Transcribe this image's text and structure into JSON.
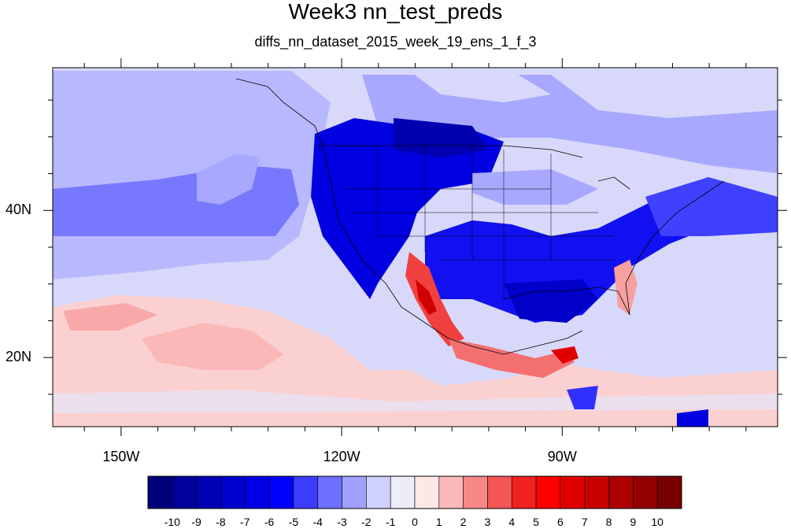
{
  "title": "Week3 nn_test_preds",
  "subtitle": "diffs_nn_dataset_2015_week_19_ens_1_f_3",
  "axes": {
    "lat_labels": [
      {
        "text": "40N",
        "value": 40
      },
      {
        "text": "20N",
        "value": 20
      }
    ],
    "lon_labels": [
      {
        "text": "150W",
        "value": -150
      },
      {
        "text": "120W",
        "value": -120
      },
      {
        "text": "90W",
        "value": -90
      }
    ],
    "lon_range": [
      -159.3,
      -60.7
    ],
    "lat_range": [
      10.6,
      59.4
    ]
  },
  "colorbar": {
    "levels": [
      "-10",
      "-9",
      "-8",
      "-7",
      "-6",
      "-5",
      "-4",
      "-3",
      "-2",
      "-1",
      "0",
      "1",
      "2",
      "3",
      "4",
      "5",
      "6",
      "7",
      "8",
      "9",
      "10"
    ],
    "colors": [
      "#00007a",
      "#00009a",
      "#0000b5",
      "#0000cf",
      "#0000e6",
      "#0000ff",
      "#3c3cff",
      "#6e6eff",
      "#a0a0ff",
      "#d0d0ff",
      "#ececfa",
      "#fde8e8",
      "#fbb8b8",
      "#f88888",
      "#f45555",
      "#f02222",
      "#ff0000",
      "#e00000",
      "#c80000",
      "#ad0000",
      "#930000",
      "#780000"
    ]
  },
  "field_colors": {
    "ocean_light": "#d4d4fa",
    "blue_medium": "#a8a8ff",
    "blue_dark": "#0000e0",
    "red_light": "#fbc8c8",
    "red_strong": "#f02222"
  }
}
